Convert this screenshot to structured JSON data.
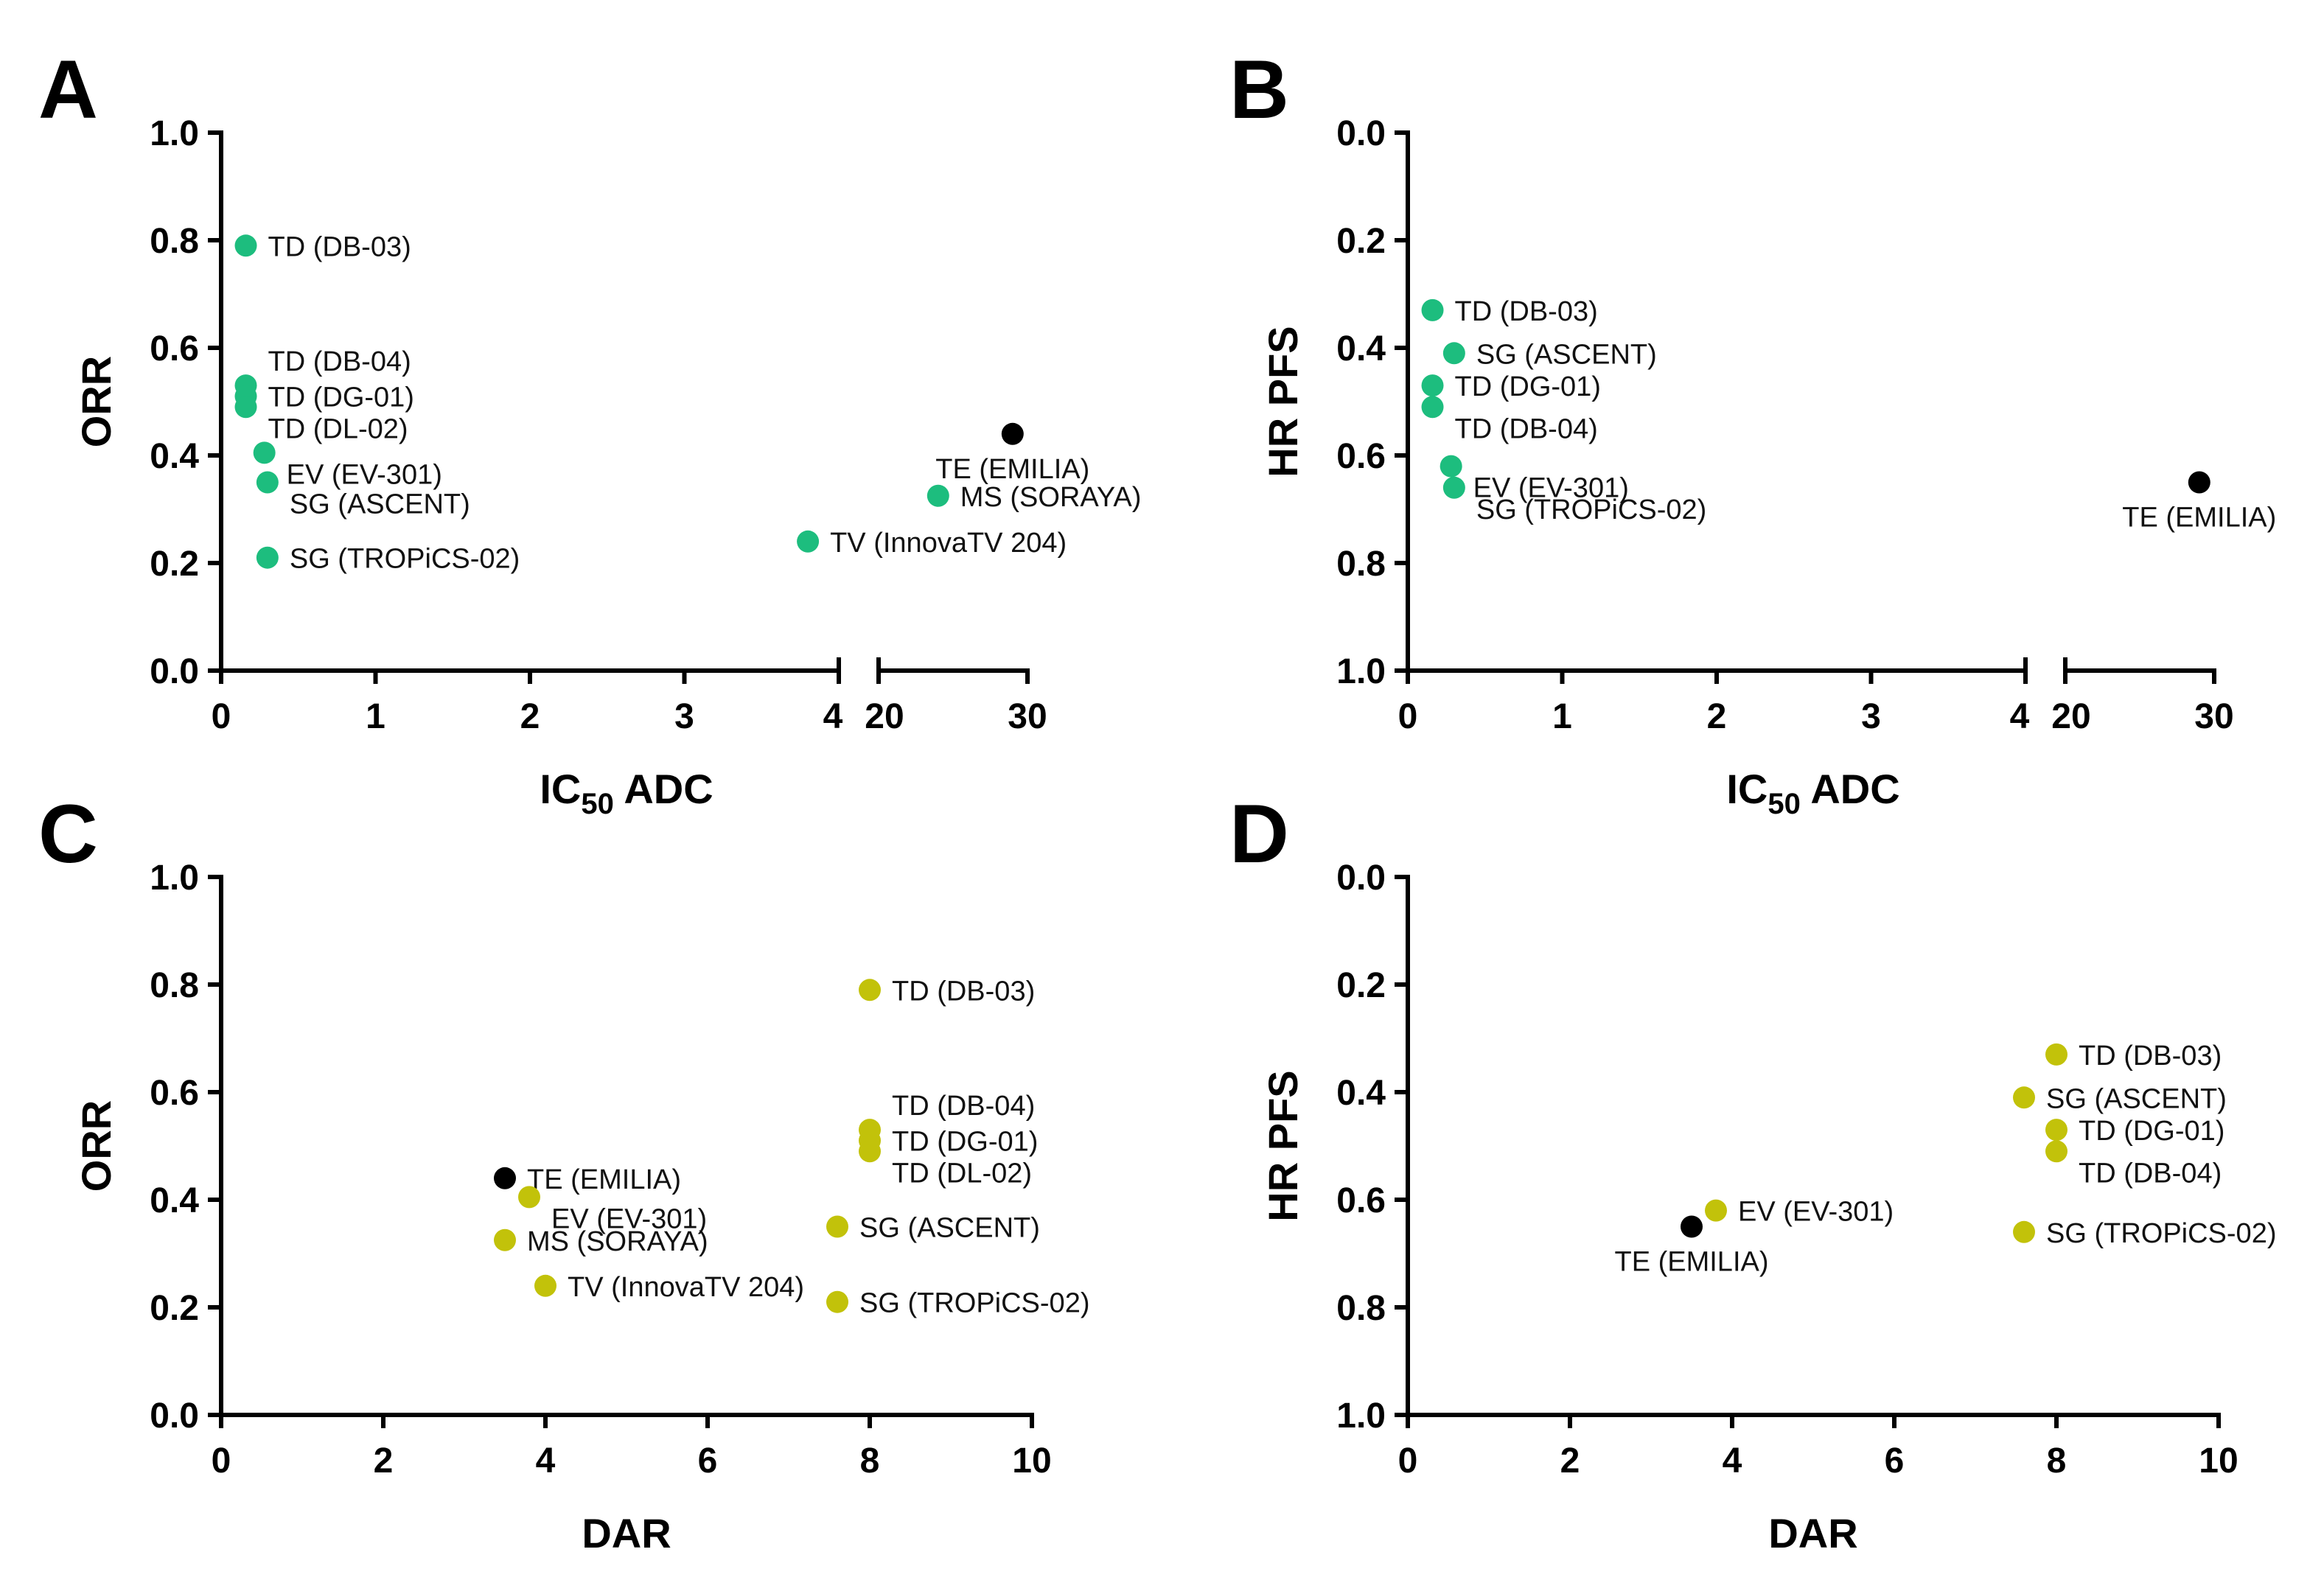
{
  "colors": {
    "ic50": "#1dbd7e",
    "dar": "#c2c20a",
    "reference": "#000000"
  },
  "chart_data": [
    {
      "panel": "A",
      "type": "scatter",
      "title": "",
      "xlabel_main": "IC",
      "xlabel_sub": "50",
      "xlabel_tail": " ADC",
      "ylabel": "ORR",
      "x_axis": "broken",
      "x_segments": [
        {
          "range": [
            0,
            4
          ],
          "ticks": [
            "0",
            "1",
            "2",
            "3",
            "4"
          ]
        },
        {
          "range": [
            20,
            30
          ],
          "ticks": [
            "20",
            "30"
          ]
        }
      ],
      "y_range": [
        0,
        1.0
      ],
      "y_inverted": false,
      "y_ticks": [
        "0.0",
        "0.2",
        "0.4",
        "0.6",
        "0.8",
        "1.0"
      ],
      "points": [
        {
          "label": "TD (DB-03)",
          "x": 0.16,
          "y": 0.79,
          "color": "ic50",
          "anchor": "right"
        },
        {
          "label": "TD (DB-04)",
          "x": 0.16,
          "y": 0.53,
          "color": "ic50",
          "anchor": "right-up"
        },
        {
          "label": "TD (DG-01)",
          "x": 0.16,
          "y": 0.51,
          "color": "ic50",
          "anchor": "right"
        },
        {
          "label": "TD (DL-02)",
          "x": 0.16,
          "y": 0.49,
          "color": "ic50",
          "anchor": "right-down"
        },
        {
          "label": "EV (EV-301)",
          "x": 0.28,
          "y": 0.405,
          "color": "ic50",
          "anchor": "right-down"
        },
        {
          "label": "SG (ASCENT)",
          "x": 0.3,
          "y": 0.35,
          "color": "ic50",
          "anchor": "right-down"
        },
        {
          "label": "SG  (TROPiCS-02)",
          "x": 0.3,
          "y": 0.21,
          "color": "ic50",
          "anchor": "right"
        },
        {
          "label": "TV (InnovaTV 204)",
          "x": 3.8,
          "y": 0.24,
          "color": "ic50",
          "anchor": "right"
        },
        {
          "label": "TE (EMILIA)",
          "x": 29.0,
          "y": 0.44,
          "color": "reference",
          "anchor": "below"
        },
        {
          "label": "MS (SORAYA)",
          "x": 24.0,
          "y": 0.325,
          "color": "ic50",
          "anchor": "right"
        }
      ]
    },
    {
      "panel": "B",
      "type": "scatter",
      "title": "",
      "xlabel_main": "IC",
      "xlabel_sub": "50",
      "xlabel_tail": " ADC",
      "ylabel": "HR PFS",
      "x_axis": "broken",
      "x_segments": [
        {
          "range": [
            0,
            4
          ],
          "ticks": [
            "0",
            "1",
            "2",
            "3",
            "4"
          ]
        },
        {
          "range": [
            20,
            30
          ],
          "ticks": [
            "20",
            "30"
          ]
        }
      ],
      "y_range": [
        0,
        1.0
      ],
      "y_inverted": true,
      "y_ticks": [
        "0.0",
        "0.2",
        "0.4",
        "0.6",
        "0.8",
        "1.0"
      ],
      "points": [
        {
          "label": "TD (DB-03)",
          "x": 0.16,
          "y": 0.33,
          "color": "ic50",
          "anchor": "right"
        },
        {
          "label": "SG (ASCENT)",
          "x": 0.3,
          "y": 0.41,
          "color": "ic50",
          "anchor": "right"
        },
        {
          "label": "TD (DG-01)",
          "x": 0.16,
          "y": 0.47,
          "color": "ic50",
          "anchor": "right"
        },
        {
          "label": "TD (DB-04)",
          "x": 0.16,
          "y": 0.51,
          "color": "ic50",
          "anchor": "right-down"
        },
        {
          "label": "EV (EV-301)",
          "x": 0.28,
          "y": 0.62,
          "color": "ic50",
          "anchor": "right-down"
        },
        {
          "label": "SG (TROPiCS-02)",
          "x": 0.3,
          "y": 0.66,
          "color": "ic50",
          "anchor": "right-down"
        },
        {
          "label": "TE (EMILIA)",
          "x": 29.0,
          "y": 0.65,
          "color": "reference",
          "anchor": "below"
        }
      ]
    },
    {
      "panel": "C",
      "type": "scatter",
      "title": "",
      "xlabel_main": "DAR",
      "xlabel_sub": "",
      "xlabel_tail": "",
      "ylabel": "ORR",
      "x_axis": "linear",
      "x_range": [
        0,
        10
      ],
      "x_ticks": [
        "0",
        "2",
        "4",
        "6",
        "8",
        "10"
      ],
      "y_range": [
        0,
        1.0
      ],
      "y_inverted": false,
      "y_ticks": [
        "0.0",
        "0.2",
        "0.4",
        "0.6",
        "0.8",
        "1.0"
      ],
      "points": [
        {
          "label": "TD (DB-03)",
          "x": 8.0,
          "y": 0.79,
          "color": "dar",
          "anchor": "right"
        },
        {
          "label": "TD (DB-04)",
          "x": 8.0,
          "y": 0.53,
          "color": "dar",
          "anchor": "right-up"
        },
        {
          "label": "TD (DG-01)",
          "x": 8.0,
          "y": 0.51,
          "color": "dar",
          "anchor": "right"
        },
        {
          "label": "TD (DL-02)",
          "x": 8.0,
          "y": 0.49,
          "color": "dar",
          "anchor": "right-down"
        },
        {
          "label": "SG (ASCENT)",
          "x": 7.6,
          "y": 0.35,
          "color": "dar",
          "anchor": "right"
        },
        {
          "label": "SG (TROPiCS-02)",
          "x": 7.6,
          "y": 0.21,
          "color": "dar",
          "anchor": "right"
        },
        {
          "label": "TE (EMILIA)",
          "x": 3.5,
          "y": 0.44,
          "color": "reference",
          "anchor": "right"
        },
        {
          "label": "EV (EV-301)",
          "x": 3.8,
          "y": 0.405,
          "color": "dar",
          "anchor": "right-down"
        },
        {
          "label": "MS (SORAYA)",
          "x": 3.5,
          "y": 0.325,
          "color": "dar",
          "anchor": "right"
        },
        {
          "label": "TV (InnovaTV 204)",
          "x": 4.0,
          "y": 0.24,
          "color": "dar",
          "anchor": "right"
        }
      ]
    },
    {
      "panel": "D",
      "type": "scatter",
      "title": "",
      "xlabel_main": "DAR",
      "xlabel_sub": "",
      "xlabel_tail": "",
      "ylabel": "HR PFS",
      "x_axis": "linear",
      "x_range": [
        0,
        10
      ],
      "x_ticks": [
        "0",
        "2",
        "4",
        "6",
        "8",
        "10"
      ],
      "y_range": [
        0,
        1.0
      ],
      "y_inverted": true,
      "y_ticks": [
        "0.0",
        "0.2",
        "0.4",
        "0.6",
        "0.8",
        "1.0"
      ],
      "points": [
        {
          "label": "TD (DB-03)",
          "x": 8.0,
          "y": 0.33,
          "color": "dar",
          "anchor": "right"
        },
        {
          "label": "SG (ASCENT)",
          "x": 7.6,
          "y": 0.41,
          "color": "dar",
          "anchor": "right"
        },
        {
          "label": "TD (DG-01)",
          "x": 8.0,
          "y": 0.47,
          "color": "dar",
          "anchor": "right"
        },
        {
          "label": "TD (DB-04)",
          "x": 8.0,
          "y": 0.51,
          "color": "dar",
          "anchor": "right-down"
        },
        {
          "label": "SG (TROPiCS-02)",
          "x": 7.6,
          "y": 0.66,
          "color": "dar",
          "anchor": "right"
        },
        {
          "label": "EV (EV-301)",
          "x": 3.8,
          "y": 0.62,
          "color": "dar",
          "anchor": "right"
        },
        {
          "label": "TE (EMILIA)",
          "x": 3.5,
          "y": 0.65,
          "color": "reference",
          "anchor": "below"
        }
      ]
    }
  ]
}
